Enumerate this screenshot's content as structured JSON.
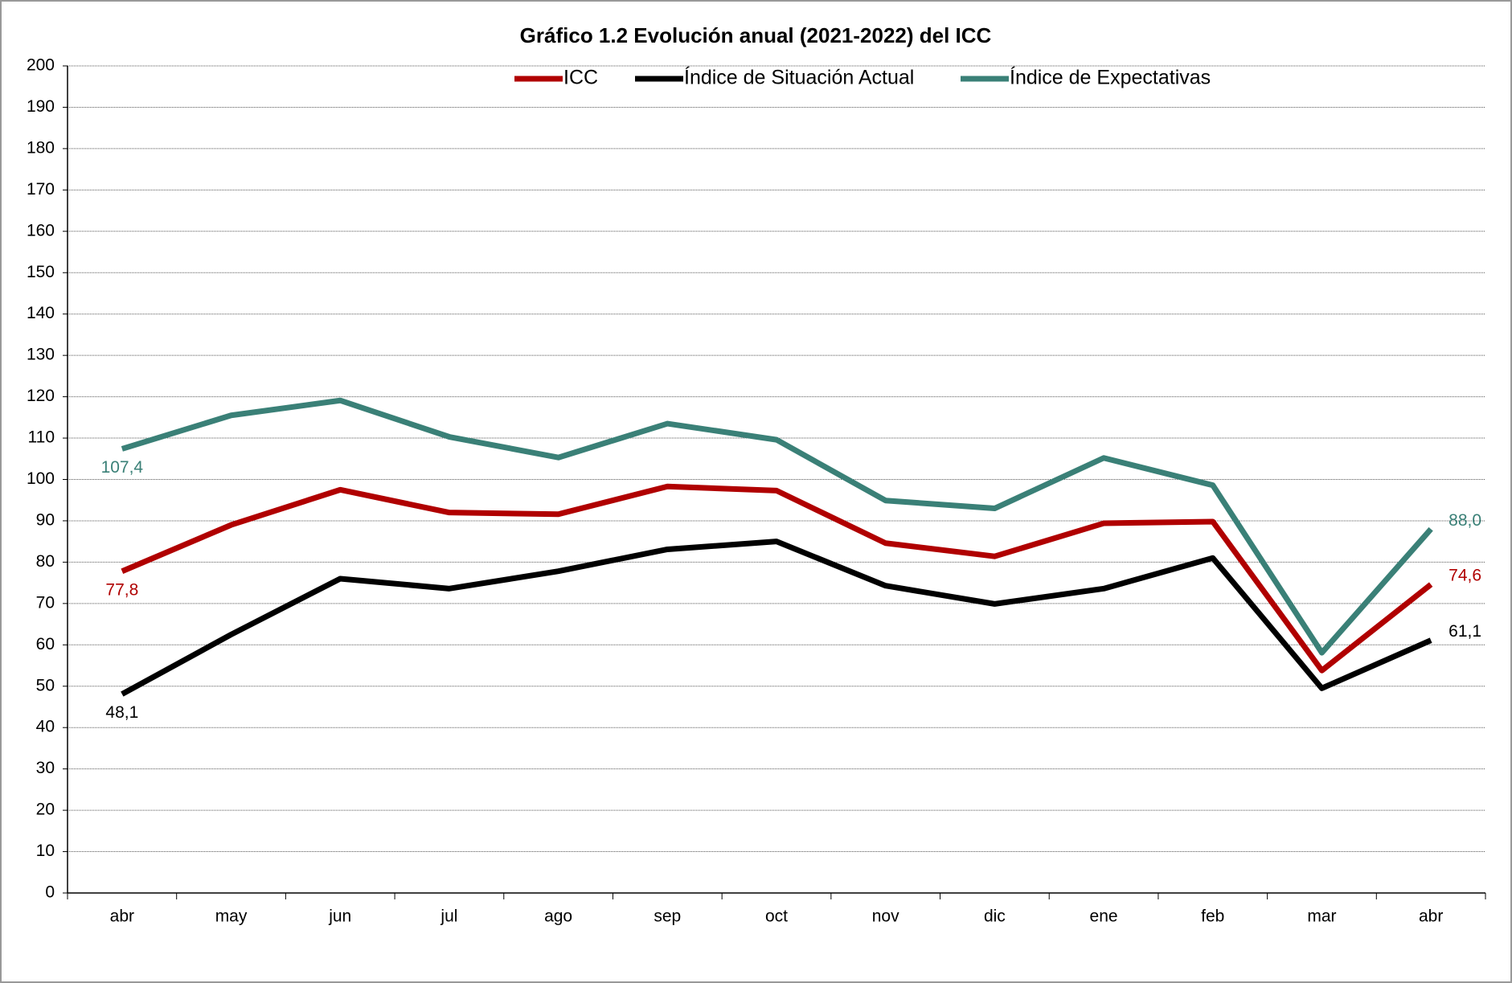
{
  "chart_data": {
    "type": "line",
    "title": "Gráfico 1.2 Evolución anual (2021-2022) del ICC",
    "categories": [
      "abr",
      "may",
      "jun",
      "jul",
      "ago",
      "sep",
      "oct",
      "nov",
      "dic",
      "ene",
      "feb",
      "mar",
      "abr"
    ],
    "series": [
      {
        "name": "ICC",
        "color": "#b00000",
        "values": [
          77.8,
          89,
          97.5,
          92,
          91.6,
          98.3,
          97.3,
          84.6,
          81.4,
          89.4,
          89.8,
          53.8,
          74.6
        ],
        "value_labels": [
          "77,8",
          null,
          null,
          null,
          null,
          null,
          null,
          null,
          null,
          null,
          null,
          null,
          "74,6"
        ]
      },
      {
        "name": "Índice de Situación Actual",
        "color": "#000000",
        "values": [
          48.1,
          62.5,
          76,
          73.6,
          77.8,
          83.1,
          85,
          74.3,
          69.9,
          73.6,
          81,
          49.5,
          61.1
        ],
        "value_labels": [
          "48,1",
          null,
          null,
          null,
          null,
          null,
          null,
          null,
          null,
          null,
          null,
          null,
          "61,1"
        ]
      },
      {
        "name": "Índice de Expectativas",
        "color": "#3a8077",
        "values": [
          107.4,
          115.5,
          119.1,
          110.3,
          105.3,
          113.5,
          109.6,
          94.9,
          93,
          105.2,
          98.6,
          58.1,
          88.0
        ],
        "value_labels": [
          "107,4",
          null,
          null,
          null,
          null,
          null,
          null,
          null,
          null,
          null,
          null,
          null,
          "88,0"
        ]
      }
    ],
    "ylim": [
      0,
      200
    ],
    "yticks": [
      0,
      10,
      20,
      30,
      40,
      50,
      60,
      70,
      80,
      90,
      100,
      110,
      120,
      130,
      140,
      150,
      160,
      170,
      180,
      190,
      200
    ],
    "grid": true,
    "legend": "top"
  }
}
